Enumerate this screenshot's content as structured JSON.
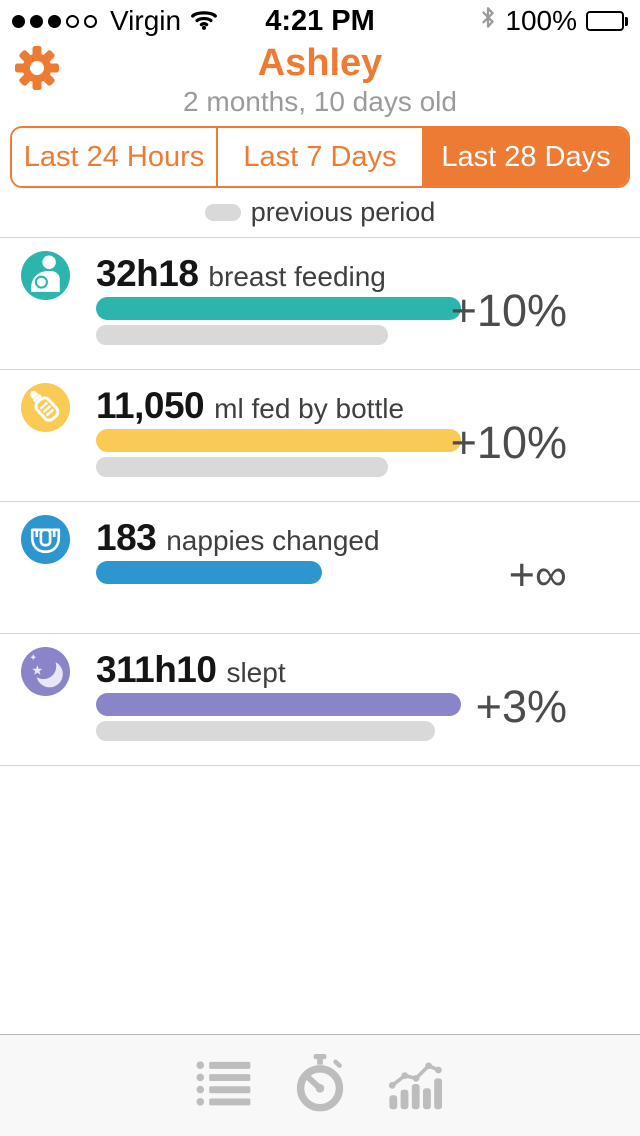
{
  "status_bar": {
    "signal": {
      "filled_dots": 3,
      "total_dots": 5
    },
    "carrier": "Virgin",
    "time": "4:21 PM",
    "battery_label": "100%"
  },
  "header": {
    "accent_color": "#ee7b33",
    "title": "Ashley",
    "subtitle": "2 months, 10 days old"
  },
  "period_selector": {
    "options": [
      {
        "label": "Last 24 Hours",
        "selected": false
      },
      {
        "label": "Last 7 Days",
        "selected": false
      },
      {
        "label": "Last 28 Days",
        "selected": true
      }
    ]
  },
  "legend": {
    "label": "previous period",
    "swatch_color": "#d9d9d9"
  },
  "stats": [
    {
      "icon": "breastfeeding-icon",
      "value": "32h18",
      "unit_label": "breast feeding",
      "change": "+10%",
      "color": "#2cb5ac",
      "bar_pct": 100,
      "prev_bar_pct": 80
    },
    {
      "icon": "baby-bottle-icon",
      "value": "11,050",
      "unit_label": "ml fed by bottle",
      "change": "+10%",
      "color": "#f9cb55",
      "bar_pct": 100,
      "prev_bar_pct": 80
    },
    {
      "icon": "nappy-icon",
      "value": "183",
      "unit_label": "nappies changed",
      "change": "+∞",
      "color": "#2e96cf",
      "bar_pct": 62,
      "prev_bar_pct": null
    },
    {
      "icon": "moon-icon",
      "value": "311h10",
      "unit_label": "slept",
      "change": "+3%",
      "color": "#8a84c8",
      "bar_pct": 100,
      "prev_bar_pct": 93
    }
  ],
  "tab_bar": {
    "items": [
      {
        "icon": "list-icon"
      },
      {
        "icon": "stopwatch-icon"
      },
      {
        "icon": "chart-icon"
      }
    ]
  }
}
